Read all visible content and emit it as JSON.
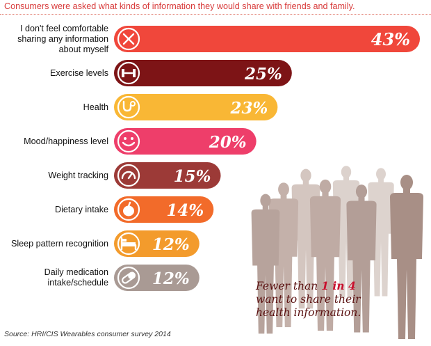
{
  "title": "Consumers were asked what kinds of information they would share with friends and family.",
  "chart_data": {
    "type": "bar",
    "orientation": "horizontal",
    "title": "Consumers were asked what kinds of information they would share with friends and family.",
    "xlabel": "",
    "ylabel": "",
    "xlim": [
      0,
      43
    ],
    "categories": [
      "I don't feel comfortable sharing any information about myself",
      "Exercise levels",
      "Health",
      "Mood/happiness level",
      "Weight tracking",
      "Dietary intake",
      "Sleep pattern recognition",
      "Daily medication intake/schedule"
    ],
    "values": [
      43,
      25,
      23,
      20,
      15,
      14,
      12,
      12
    ],
    "value_labels": [
      "43%",
      "25%",
      "23%",
      "20%",
      "15%",
      "14%",
      "12%",
      "12%"
    ],
    "icons": [
      "x-icon",
      "dumbbell-icon",
      "stethoscope-icon",
      "smiley-icon",
      "speedometer-icon",
      "apple-icon",
      "bed-icon",
      "pill-icon"
    ],
    "colors": [
      "#f0473b",
      "#7d1416",
      "#f9b735",
      "#ee3e6a",
      "#9c3a37",
      "#f26b2a",
      "#f39b2c",
      "#a99a94"
    ]
  },
  "callout": {
    "pre": "Fewer than ",
    "highlight": "1 in 4",
    "post": " want to share their health information."
  },
  "source": "Source: HRI/CIS Wearables consumer survey 2014"
}
